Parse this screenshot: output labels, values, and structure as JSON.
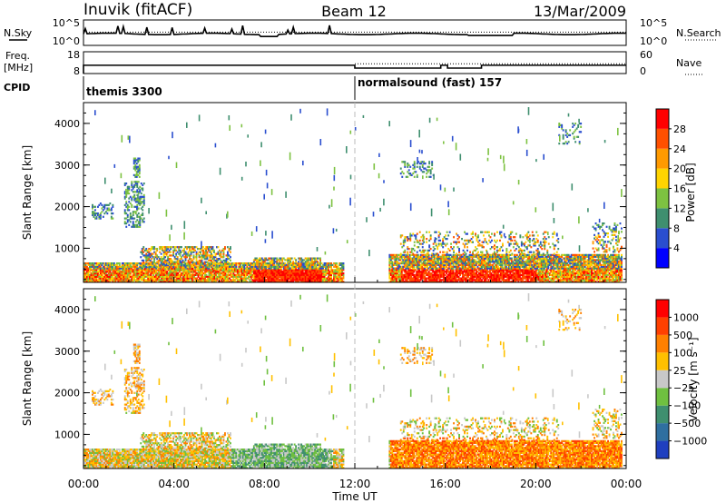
{
  "header": {
    "station": "Inuvik (fitACF)",
    "beam": "Beam 12",
    "date": "13/Mar/2009"
  },
  "chart_data": [
    {
      "type": "line",
      "panel": "noise",
      "left_label": "N.Sky",
      "right_label": "N.Search",
      "left_ticks": [
        "10^5",
        "10^0"
      ],
      "right_ticks": [
        "10^5",
        "10^0"
      ]
    },
    {
      "type": "line",
      "panel": "frequency",
      "left_label_top": "Freq.",
      "left_label_bottom": "[MHz]",
      "right_label": "Nave",
      "left_ticks": [
        "18",
        "8"
      ],
      "right_ticks": [
        "60",
        "0"
      ]
    },
    {
      "type": "table",
      "panel": "cpid",
      "label": "CPID",
      "modes": [
        {
          "name": "themis 3300",
          "start": 0,
          "end": 12
        },
        {
          "name": "normalsound (fast) 157",
          "start": 12,
          "end": 24
        }
      ]
    },
    {
      "type": "heatmap",
      "panel": "power",
      "ylabel": "Slant Range [km]",
      "yticks": [
        "4000",
        "3000",
        "2000",
        "1000"
      ],
      "ylim": [
        180,
        4500
      ],
      "colorbar_label": "Power [dB]",
      "colorbar_ticks": [
        "28",
        "24",
        "20",
        "16",
        "12",
        "8",
        "4"
      ],
      "colors": [
        "#0000ff",
        "#2a4ecf",
        "#3f8f6f",
        "#7dc241",
        "#ffd400",
        "#ff9a00",
        "#ff5000",
        "#ff0000"
      ]
    },
    {
      "type": "heatmap",
      "panel": "velocity",
      "ylabel": "Slant Range [km]",
      "yticks": [
        "4000",
        "3000",
        "2000",
        "1000"
      ],
      "ylim": [
        180,
        4500
      ],
      "colorbar_label": "Velocity [m s⁻¹]",
      "colorbar_ticks": [
        "1000",
        "500",
        "100",
        "25",
        "−25",
        "−100",
        "−500",
        "−1000"
      ],
      "colors": [
        "#1f3fbf",
        "#2f6fa0",
        "#3f8f6f",
        "#6fc040",
        "#c8c8c8",
        "#ffc000",
        "#ff8000",
        "#ff4000",
        "#ff0000"
      ]
    }
  ],
  "xaxis": {
    "label": "Time UT",
    "ticks": [
      "00:00",
      "04:00",
      "08:00",
      "12:00",
      "16:00",
      "20:00",
      "00:00"
    ]
  }
}
